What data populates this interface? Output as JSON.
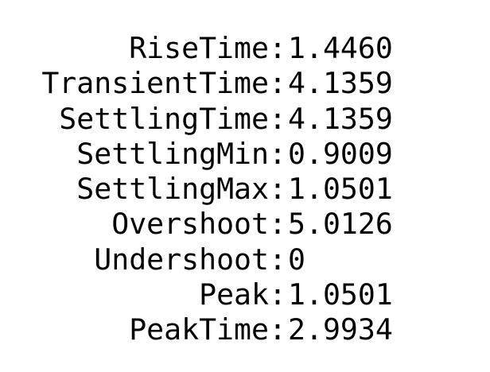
{
  "metrics": [
    {
      "label": "RiseTime",
      "value": "1.4460"
    },
    {
      "label": "TransientTime",
      "value": "4.1359"
    },
    {
      "label": "SettlingTime",
      "value": "4.1359"
    },
    {
      "label": "SettlingMin",
      "value": "0.9009"
    },
    {
      "label": "SettlingMax",
      "value": "1.0501"
    },
    {
      "label": "Overshoot",
      "value": "5.0126"
    },
    {
      "label": "Undershoot",
      "value": "0"
    },
    {
      "label": "Peak",
      "value": "1.0501"
    },
    {
      "label": "PeakTime",
      "value": "2.9934"
    }
  ],
  "colors": {
    "text": "#000000",
    "background": "#ffffff"
  }
}
